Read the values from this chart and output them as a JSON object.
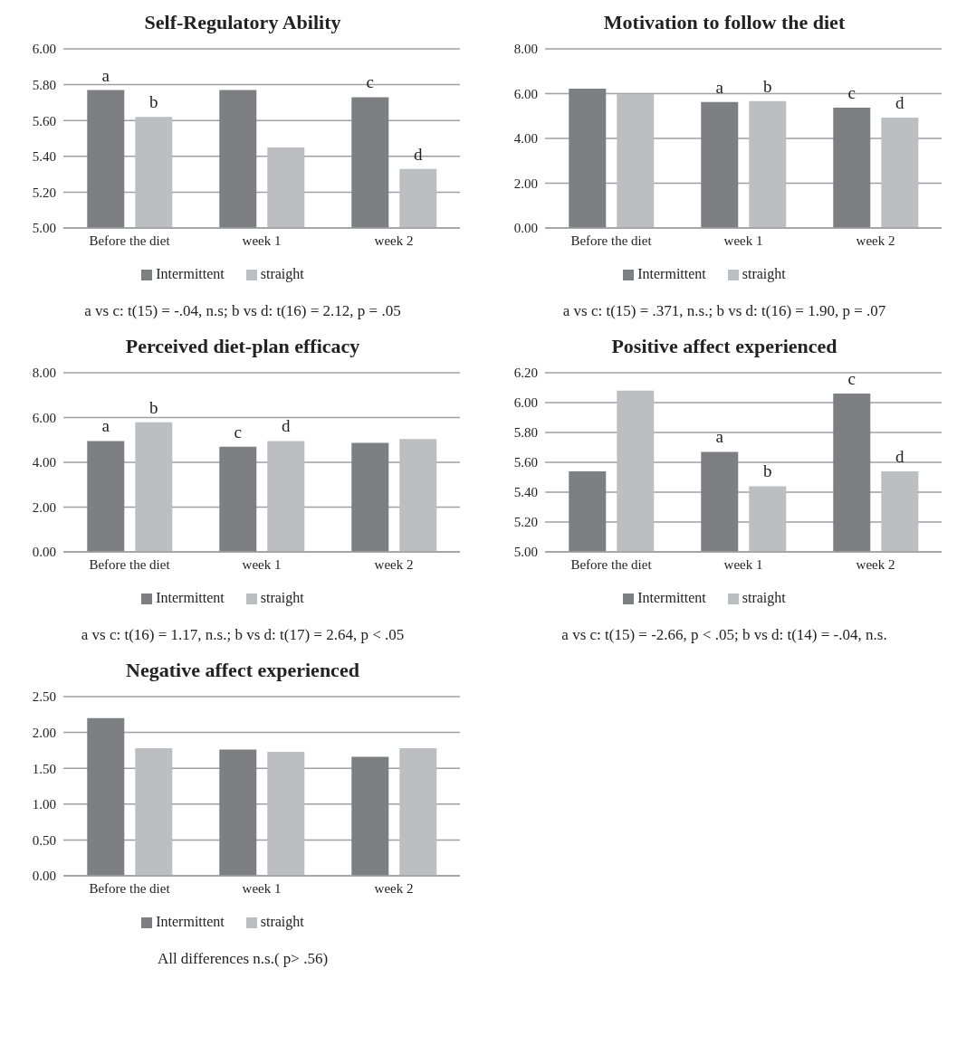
{
  "chart_data": [
    {
      "type": "bar",
      "title": "Self-Regulatory Ability",
      "categories": [
        "Before the diet",
        "week 1",
        "week 2"
      ],
      "series": [
        {
          "name": "Intermittent",
          "color": "#7e7f83",
          "values": [
            5.77,
            5.77,
            5.73
          ],
          "value_labels": [
            "a",
            null,
            "c"
          ]
        },
        {
          "name": "straight",
          "color": "#bdbec2",
          "values": [
            5.62,
            5.45,
            5.33
          ],
          "value_labels": [
            "b",
            null,
            "d"
          ]
        }
      ],
      "ylim": [
        5,
        6
      ],
      "yticks": [
        {
          "value": 5,
          "label": "5.00"
        },
        {
          "value": 5.2,
          "label": "5.20"
        },
        {
          "value": 5.4,
          "label": "5.40"
        },
        {
          "value": 5.6,
          "label": "5.60"
        },
        {
          "value": 5.8,
          "label": "5.80"
        },
        {
          "value": 6,
          "label": "6.00"
        }
      ],
      "grid": "y",
      "legend": "bottom",
      "annotations": [
        "a vs c: t(15) = -.04, n.s; b vs d: t(16) = 2.12, p = .05"
      ]
    },
    {
      "type": "bar",
      "title": "Motivation to follow the diet",
      "categories": [
        "Before the diet",
        "week 1",
        "week 2"
      ],
      "series": [
        {
          "name": "Intermittent",
          "color": "#7e7f83",
          "values": [
            6.22,
            5.63,
            5.37
          ],
          "value_labels": [
            null,
            "a",
            "c"
          ]
        },
        {
          "name": "straight",
          "color": "#bdbec2",
          "values": [
            5.98,
            5.67,
            4.93
          ],
          "value_labels": [
            null,
            "b",
            "d"
          ]
        }
      ],
      "ylim": [
        0,
        8
      ],
      "yticks": [
        {
          "value": 0,
          "label": "0.00"
        },
        {
          "value": 2,
          "label": "2.00"
        },
        {
          "value": 4,
          "label": "4.00"
        },
        {
          "value": 6,
          "label": "6.00"
        },
        {
          "value": 8,
          "label": "8.00"
        }
      ],
      "grid": "y",
      "legend": "bottom",
      "annotations": [
        "a vs c: t(15) = .371, n.s.; b vs d: t(16) = 1.90, p = .07"
      ]
    },
    {
      "type": "bar",
      "title": "Perceived diet-plan efficacy",
      "categories": [
        "Before the diet",
        "week 1",
        "week 2"
      ],
      "series": [
        {
          "name": "Intermittent",
          "color": "#7e7f83",
          "values": [
            4.95,
            4.7,
            4.87
          ],
          "value_labels": [
            "a",
            "c",
            null
          ]
        },
        {
          "name": "straight",
          "color": "#bdbec2",
          "values": [
            5.79,
            4.95,
            5.04
          ],
          "value_labels": [
            "b",
            "d",
            null
          ]
        }
      ],
      "ylim": [
        0,
        8
      ],
      "yticks": [
        {
          "value": 0,
          "label": "0.00"
        },
        {
          "value": 2,
          "label": "2.00"
        },
        {
          "value": 4,
          "label": "4.00"
        },
        {
          "value": 6,
          "label": "6.00"
        },
        {
          "value": 8,
          "label": "8.00"
        }
      ],
      "grid": "y",
      "legend": "bottom",
      "annotations": [
        "a vs c: t(16) = 1.17, n.s.; b vs d: t(17) = 2.64, p < .05"
      ]
    },
    {
      "type": "bar",
      "title": "Positive affect experienced",
      "categories": [
        "Before the diet",
        "week 1",
        "week 2"
      ],
      "series": [
        {
          "name": "Intermittent",
          "color": "#7e7f83",
          "values": [
            5.54,
            5.67,
            6.06
          ],
          "value_labels": [
            null,
            "a",
            "c"
          ]
        },
        {
          "name": "straight",
          "color": "#bdbec2",
          "values": [
            6.08,
            5.44,
            5.54
          ],
          "value_labels": [
            null,
            "b",
            "d"
          ]
        }
      ],
      "ylim": [
        5,
        6.2
      ],
      "yticks": [
        {
          "value": 5,
          "label": "5.00"
        },
        {
          "value": 5.2,
          "label": "5.20"
        },
        {
          "value": 5.4,
          "label": "5.40"
        },
        {
          "value": 5.6,
          "label": "5.60"
        },
        {
          "value": 5.8,
          "label": "5.80"
        },
        {
          "value": 6,
          "label": "6.00"
        },
        {
          "value": 6.2,
          "label": "6.20"
        }
      ],
      "grid": "y",
      "legend": "bottom",
      "annotations": [
        "a vs c: t(15) = -2.66, p < .05; b vs d: t(14) = -.04, n.s."
      ]
    },
    {
      "type": "bar",
      "title": "Negative affect experienced",
      "categories": [
        "Before the diet",
        "week 1",
        "week 2"
      ],
      "series": [
        {
          "name": "Intermittent",
          "color": "#7e7f83",
          "values": [
            2.2,
            1.76,
            1.66
          ]
        },
        {
          "name": "straight",
          "color": "#bdbec2",
          "values": [
            1.78,
            1.73,
            1.78
          ]
        }
      ],
      "ylim": [
        0,
        2.5
      ],
      "yticks": [
        {
          "value": 0,
          "label": "0.00"
        },
        {
          "value": 0.5,
          "label": "0.50"
        },
        {
          "value": 1,
          "label": "1.00"
        },
        {
          "value": 1.5,
          "label": "1.50"
        },
        {
          "value": 2,
          "label": "2.00"
        },
        {
          "value": 2.5,
          "label": "2.50"
        }
      ],
      "grid": "y",
      "legend": "bottom",
      "annotations": [
        "All differences n.s.( p> .56)"
      ]
    }
  ]
}
